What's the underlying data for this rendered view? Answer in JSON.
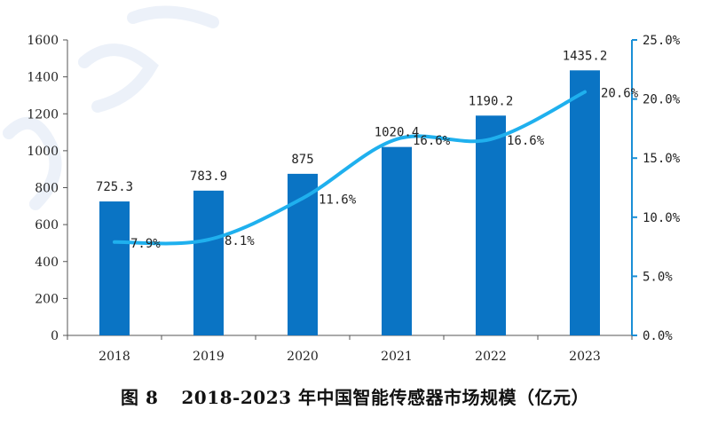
{
  "chart_data": {
    "type": "bar",
    "categories": [
      "2018",
      "2019",
      "2020",
      "2021",
      "2022",
      "2023"
    ],
    "series": [
      {
        "type": "bar",
        "axis": "left",
        "values": [
          725.3,
          783.9,
          875,
          1020.4,
          1190.2,
          1435.2
        ],
        "labels": [
          "725.3",
          "783.9",
          "875",
          "1020.4",
          "1190.2",
          "1435.2"
        ],
        "color": "#0a74c4"
      },
      {
        "type": "line",
        "axis": "right",
        "values": [
          7.9,
          8.1,
          11.6,
          16.6,
          16.6,
          20.6
        ],
        "labels": [
          "7.9%",
          "8.1%",
          "11.6%",
          "16.6%",
          "16.6%",
          "20.6%"
        ],
        "color": "#1fb0ee"
      }
    ],
    "ylim": [
      0,
      1600
    ],
    "yticks": [
      "0",
      "200",
      "400",
      "600",
      "800",
      "1000",
      "1200",
      "1400",
      "1600"
    ],
    "y2lim": [
      0,
      25
    ],
    "y2ticks": [
      "0.0%",
      "5.0%",
      "10.0%",
      "15.0%",
      "20.0%",
      "25.0%"
    ],
    "grid": false,
    "right_axis_color": "#1a8fd6"
  },
  "caption": {
    "figure_label": "图 8",
    "title": "2018-2023 年中国智能传感器市场规模（亿元）"
  }
}
